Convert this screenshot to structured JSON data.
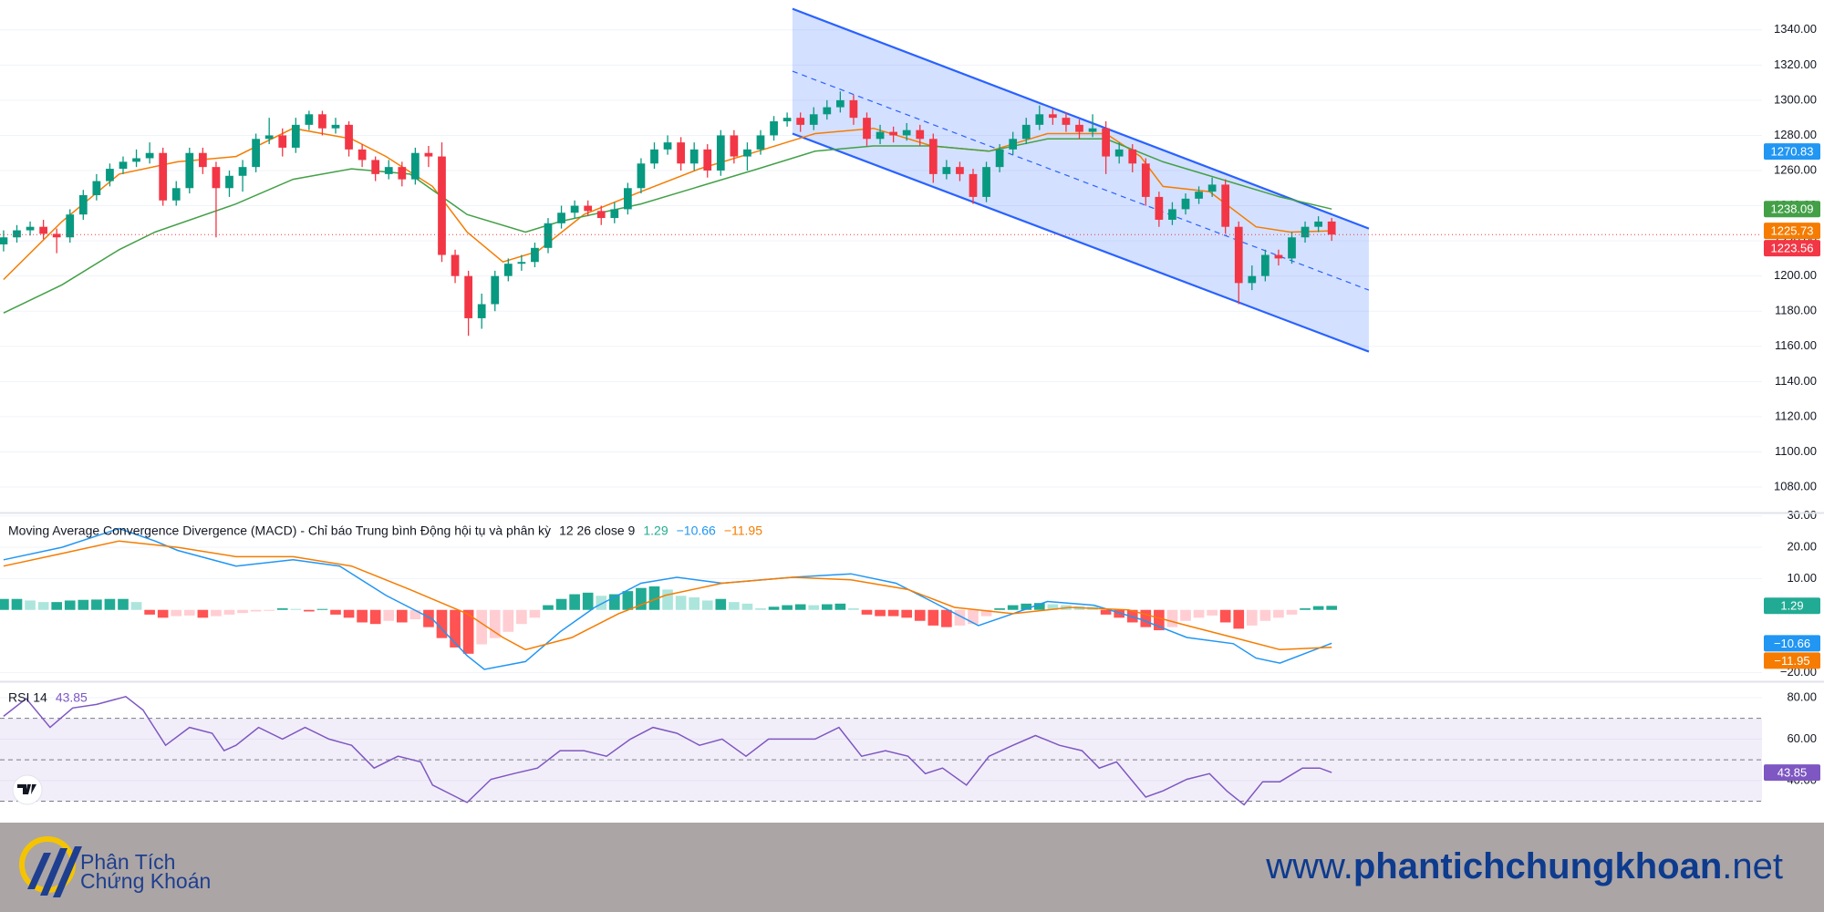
{
  "chart_data": [
    {
      "type": "candlestick",
      "xlim": [
        -0.27,
        132.4
      ],
      "ylim": [
        1066,
        1357
      ],
      "grid": true,
      "yticks": [
        {
          "value": 1080,
          "label": "1080.00"
        },
        {
          "value": 1100,
          "label": "1100.00"
        },
        {
          "value": 1120,
          "label": "1120.00"
        },
        {
          "value": 1140,
          "label": "1140.00"
        },
        {
          "value": 1160,
          "label": "1160.00"
        },
        {
          "value": 1180,
          "label": "1180.00"
        },
        {
          "value": 1200,
          "label": "1200.00"
        },
        {
          "value": 1220,
          "label": "1220.00"
        },
        {
          "value": 1240,
          "label": "1240.00"
        },
        {
          "value": 1260,
          "label": "1260.00"
        },
        {
          "value": 1280,
          "label": "1280.00"
        },
        {
          "value": 1300,
          "label": "1300.00"
        },
        {
          "value": 1320,
          "label": "1320.00"
        },
        {
          "value": 1340,
          "label": "1340.00"
        }
      ],
      "up_color": "#089981",
      "down_color": "#f23645",
      "open": [
        1218,
        1222,
        1226,
        1228,
        1224,
        1222,
        1235,
        1246,
        1254,
        1261,
        1265,
        1267,
        1270,
        1243,
        1250,
        1270,
        1262,
        1250,
        1257,
        1262,
        1278,
        1280,
        1273,
        1286,
        1292,
        1284,
        1286,
        1272,
        1266,
        1258,
        1262,
        1255,
        1270,
        1268,
        1212,
        1200,
        1176,
        1184,
        1200,
        1207,
        1208,
        1216,
        1230,
        1236,
        1240,
        1237,
        1233,
        1238,
        1250,
        1264,
        1272,
        1276,
        1264,
        1272,
        1260,
        1280,
        1268,
        1272,
        1280,
        1288,
        1290,
        1286,
        1292,
        1296,
        1300,
        1290,
        1278,
        1282,
        1280,
        1283,
        1278,
        1258,
        1262,
        1258,
        1245,
        1262,
        1272,
        1278,
        1286,
        1292,
        1290,
        1286,
        1282,
        1284,
        1268,
        1272,
        1264,
        1245,
        1232,
        1238,
        1244,
        1248,
        1252,
        1228,
        1196,
        1200,
        1212,
        1210,
        1222,
        1228,
        1231
      ],
      "high": [
        1226,
        1229,
        1231,
        1232,
        1227,
        1238,
        1249,
        1258,
        1264,
        1268,
        1272,
        1276,
        1273,
        1254,
        1273,
        1273,
        1265,
        1260,
        1266,
        1281,
        1290,
        1284,
        1290,
        1294,
        1294,
        1290,
        1288,
        1275,
        1268,
        1266,
        1265,
        1273,
        1274,
        1276,
        1215,
        1203,
        1190,
        1203,
        1210,
        1212,
        1219,
        1233,
        1240,
        1243,
        1243,
        1240,
        1242,
        1253,
        1267,
        1276,
        1280,
        1279,
        1276,
        1275,
        1283,
        1283,
        1276,
        1283,
        1291,
        1293,
        1293,
        1296,
        1300,
        1305,
        1303,
        1293,
        1286,
        1285,
        1287,
        1286,
        1281,
        1266,
        1265,
        1261,
        1265,
        1275,
        1282,
        1290,
        1297,
        1295,
        1293,
        1289,
        1292,
        1288,
        1276,
        1275,
        1267,
        1248,
        1242,
        1247,
        1251,
        1256,
        1255,
        1231,
        1206,
        1215,
        1215,
        1225,
        1231,
        1234,
        1233
      ],
      "low": [
        1214,
        1219,
        1223,
        1221,
        1213,
        1219,
        1232,
        1243,
        1251,
        1258,
        1262,
        1264,
        1240,
        1240,
        1247,
        1258,
        1222,
        1245,
        1248,
        1259,
        1275,
        1268,
        1270,
        1283,
        1280,
        1281,
        1268,
        1262,
        1254,
        1255,
        1251,
        1252,
        1262,
        1208,
        1196,
        1166,
        1170,
        1180,
        1197,
        1203,
        1205,
        1213,
        1227,
        1233,
        1234,
        1229,
        1230,
        1235,
        1247,
        1261,
        1269,
        1260,
        1260,
        1256,
        1257,
        1264,
        1260,
        1269,
        1277,
        1285,
        1282,
        1283,
        1289,
        1293,
        1286,
        1274,
        1275,
        1276,
        1277,
        1274,
        1253,
        1255,
        1254,
        1241,
        1242,
        1259,
        1269,
        1275,
        1283,
        1286,
        1282,
        1278,
        1279,
        1258,
        1264,
        1259,
        1240,
        1228,
        1229,
        1235,
        1241,
        1245,
        1224,
        1184,
        1192,
        1197,
        1206,
        1207,
        1219,
        1225,
        1220
      ],
      "close": [
        1222,
        1226,
        1228,
        1224,
        1222,
        1235,
        1246,
        1254,
        1261,
        1265,
        1267,
        1270,
        1243,
        1250,
        1270,
        1262,
        1250,
        1257,
        1262,
        1278,
        1280,
        1273,
        1286,
        1292,
        1284,
        1286,
        1272,
        1266,
        1258,
        1262,
        1255,
        1270,
        1268,
        1212,
        1200,
        1176,
        1184,
        1200,
        1207,
        1208,
        1216,
        1230,
        1236,
        1240,
        1237,
        1233,
        1238,
        1250,
        1264,
        1272,
        1276,
        1264,
        1272,
        1260,
        1280,
        1268,
        1272,
        1280,
        1288,
        1290,
        1286,
        1292,
        1296,
        1300,
        1290,
        1278,
        1282,
        1280,
        1283,
        1278,
        1258,
        1262,
        1258,
        1245,
        1262,
        1272,
        1278,
        1286,
        1292,
        1290,
        1286,
        1282,
        1284,
        1268,
        1272,
        1264,
        1245,
        1232,
        1238,
        1244,
        1248,
        1252,
        1228,
        1196,
        1200,
        1212,
        1210,
        1222,
        1228,
        1231,
        1223.56
      ],
      "lines": [
        {
          "color": "#f57c00",
          "x": [
            0,
            4.4,
            8.7,
            13.1,
            17.5,
            21.8,
            26.2,
            28.8,
            32.3,
            34.9,
            37.6,
            40.2,
            43.7,
            48.0,
            52.4,
            56.8,
            61.1,
            65.5,
            69.9,
            74.2,
            78.6,
            83.0,
            85.6,
            87.3,
            90.8,
            94.3,
            96.9,
            100
          ],
          "values": [
            1198,
            1231,
            1258,
            1265,
            1268,
            1284,
            1278,
            1268,
            1251,
            1225,
            1208,
            1214,
            1235,
            1248,
            1261,
            1271,
            1281,
            1284,
            1274,
            1271,
            1281,
            1281,
            1268,
            1251,
            1248,
            1228,
            1225,
            1225.73
          ]
        },
        {
          "color": "#43a047",
          "x": [
            0,
            4.4,
            8.7,
            11.4,
            17.5,
            21.8,
            26.2,
            30.6,
            34.9,
            39.3,
            41.9,
            48.0,
            52.4,
            56.8,
            61.1,
            65.5,
            69.9,
            74.2,
            78.6,
            83.0,
            87.3,
            91.7,
            96.1,
            100
          ],
          "values": [
            1179,
            1195,
            1215,
            1225,
            1241,
            1255,
            1261,
            1258,
            1235,
            1225,
            1231,
            1241,
            1251,
            1261,
            1271,
            1274,
            1274,
            1271,
            1278,
            1278,
            1265,
            1255,
            1245,
            1238.09
          ]
        }
      ],
      "channel": {
        "color": "#2962ff",
        "x": [
          59.4,
          102.8
        ],
        "upper": [
          1352,
          1227
        ],
        "middle": [
          1316.5,
          1192
        ],
        "lower": [
          1281,
          1157
        ]
      },
      "price_labels": [
        {
          "value": 1270.83,
          "color": "#2196f3"
        },
        {
          "value": 1238.09,
          "color": "#43a047"
        },
        {
          "value": 1225.73,
          "color": "#f57c00"
        },
        {
          "value": 1223.56,
          "color": "#f23645"
        }
      ]
    },
    {
      "type": "macd",
      "title": "Moving Average Convergence Divergence (MACD) - Chỉ báo Trung bình Động hội tụ và phân kỳ",
      "params": "12 26 close 9",
      "xlim": [
        -0.27,
        132.4
      ],
      "ylim": [
        -22.5,
        30.5
      ],
      "grid": true,
      "yticks": [
        {
          "value": 30,
          "label": "30.00"
        },
        {
          "value": 20,
          "label": "20.00"
        },
        {
          "value": 10,
          "label": "10.00"
        },
        {
          "value": -20,
          "label": "−20.00"
        }
      ],
      "histogram": {
        "colors": {
          "rising_up": "#22ab94",
          "falling_up": "#ace5dc",
          "falling_down": "#ff5252",
          "rising_down": "#ffcdd2"
        },
        "values": [
          3.5,
          3.5,
          3,
          2.5,
          2.5,
          3,
          3.2,
          3.3,
          3.5,
          3.5,
          2.5,
          -1.5,
          -2.5,
          -2,
          -1.8,
          -2.5,
          -2,
          -1.5,
          -1,
          -0.5,
          -0.3,
          0.5,
          0.3,
          -0.5,
          0.3,
          -1.5,
          -2.5,
          -4,
          -4.5,
          -3.5,
          -4,
          -3,
          -5.5,
          -9,
          -12,
          -14,
          -11,
          -9,
          -7,
          -4.5,
          -2.5,
          1.5,
          3.5,
          5,
          5.5,
          4.5,
          5,
          6,
          7,
          7.5,
          6.5,
          4.5,
          4,
          3,
          3.5,
          2.5,
          2,
          0.5,
          1,
          1.5,
          1.8,
          1.5,
          1.8,
          2,
          0.5,
          -1.5,
          -2,
          -2,
          -2.5,
          -3.5,
          -5,
          -5.5,
          -5,
          -4.5,
          -2,
          0.5,
          1.5,
          2,
          2.2,
          1.8,
          1.5,
          1.2,
          1,
          -1.5,
          -2.5,
          -4,
          -5.5,
          -6.5,
          -5.5,
          -3.5,
          -2.5,
          -1.8,
          -4,
          -6,
          -5,
          -3.5,
          -2.5,
          -1.5,
          0.5,
          1.2,
          1.29
        ]
      },
      "series": [
        {
          "color": "#2196f3",
          "x": [
            0,
            4.4,
            8.7,
            11.4,
            13.1,
            17.5,
            21.8,
            25.3,
            28.8,
            32.3,
            34.9,
            36.2,
            39.3,
            41.9,
            44.5,
            48.0,
            50.7,
            54.1,
            59.4,
            63.8,
            67.2,
            69.9,
            73.4,
            76.0,
            78.6,
            82.1,
            85.6,
            89.1,
            92.6,
            94.3,
            96.1,
            100
          ],
          "values": [
            16,
            20,
            26,
            22,
            19,
            14,
            16,
            14,
            4.6,
            -3,
            -14.6,
            -19,
            -16.5,
            -7,
            0.8,
            8.5,
            10.4,
            8.5,
            10.4,
            11.5,
            8.5,
            2.7,
            -5,
            -1.2,
            2.7,
            1.5,
            -3,
            -8.8,
            -10.8,
            -15.4,
            -17,
            -10.66
          ]
        },
        {
          "color": "#f57c00",
          "x": [
            0,
            4.4,
            8.7,
            13.1,
            17.5,
            21.8,
            26.2,
            30.6,
            34.9,
            37.6,
            39.3,
            42.8,
            46.3,
            49.8,
            54.1,
            59.4,
            63.8,
            68.1,
            71.6,
            76.0,
            80.3,
            84.7,
            89.1,
            92.6,
            96.1,
            100
          ],
          "values": [
            14,
            18,
            22,
            20,
            17,
            17,
            14,
            6.5,
            -1.2,
            -8.8,
            -12.7,
            -8.8,
            -1.2,
            4.6,
            8.5,
            10.4,
            9.6,
            6.5,
            0.8,
            -1.2,
            0.8,
            0,
            -5,
            -8.8,
            -12.7,
            -11.95
          ]
        }
      ],
      "readouts": [
        {
          "value": 1.29,
          "color": "#22ab94"
        },
        {
          "value": -10.66,
          "label": "−10.66",
          "color": "#2196f3"
        },
        {
          "value": -11.95,
          "label": "−11.95",
          "color": "#f57c00"
        }
      ]
    },
    {
      "type": "rsi",
      "title": "RSI 14",
      "xlim": [
        -0.27,
        132.4
      ],
      "ylim": [
        21,
        87
      ],
      "grid": true,
      "yticks": [
        {
          "value": 80,
          "label": "80.00"
        },
        {
          "value": 60,
          "label": "60.00"
        },
        {
          "value": 40,
          "label": "40.00"
        }
      ],
      "bands": [
        70,
        50,
        30
      ],
      "band_fill": "#7e57c2",
      "series": [
        {
          "color": "#7e57c2",
          "x": [
            0,
            1.7,
            3.5,
            5.2,
            7.0,
            9.2,
            10.5,
            12.2,
            14.0,
            15.7,
            16.6,
            17.5,
            19.2,
            21.0,
            22.7,
            24.5,
            26.2,
            27.9,
            29.7,
            31.4,
            32.3,
            34.1,
            34.9,
            36.7,
            38.4,
            40.2,
            41.9,
            43.7,
            45.4,
            47.2,
            48.9,
            50.7,
            52.4,
            54.1,
            55.9,
            57.6,
            61.1,
            62.9,
            64.6,
            66.4,
            68.1,
            69.4,
            70.7,
            72.5,
            74.2,
            76.0,
            77.7,
            79.5,
            81.2,
            82.5,
            83.8,
            86.0,
            87.3,
            89.1,
            90.8,
            92.1,
            93.4,
            94.8,
            96.1,
            97.8,
            99.1,
            100
          ],
          "values": [
            71,
            79.5,
            65.6,
            75,
            76.7,
            80.5,
            74,
            57,
            65.6,
            62.8,
            54.4,
            57,
            65.6,
            60,
            65.6,
            60,
            57,
            46,
            51.7,
            49,
            37.8,
            32,
            29.4,
            40.6,
            43.3,
            46,
            54.4,
            54.4,
            51.7,
            60,
            65.6,
            62.8,
            57,
            60,
            51.7,
            60,
            60,
            65.6,
            51.7,
            54.4,
            51.7,
            43.3,
            46,
            37.8,
            51.7,
            57,
            61.7,
            57,
            54.4,
            46,
            49,
            32,
            35,
            40.6,
            43.3,
            35,
            28.3,
            39.4,
            39.4,
            46,
            46,
            43.85
          ]
        }
      ],
      "readouts": [
        {
          "value": 43.85,
          "color": "#7e57c2"
        }
      ]
    }
  ],
  "footer": {
    "logo_lines": [
      "Phân Tích",
      "Chứng Khoán"
    ],
    "website": [
      "www.",
      "phantichchungkhoan",
      ".net"
    ]
  }
}
